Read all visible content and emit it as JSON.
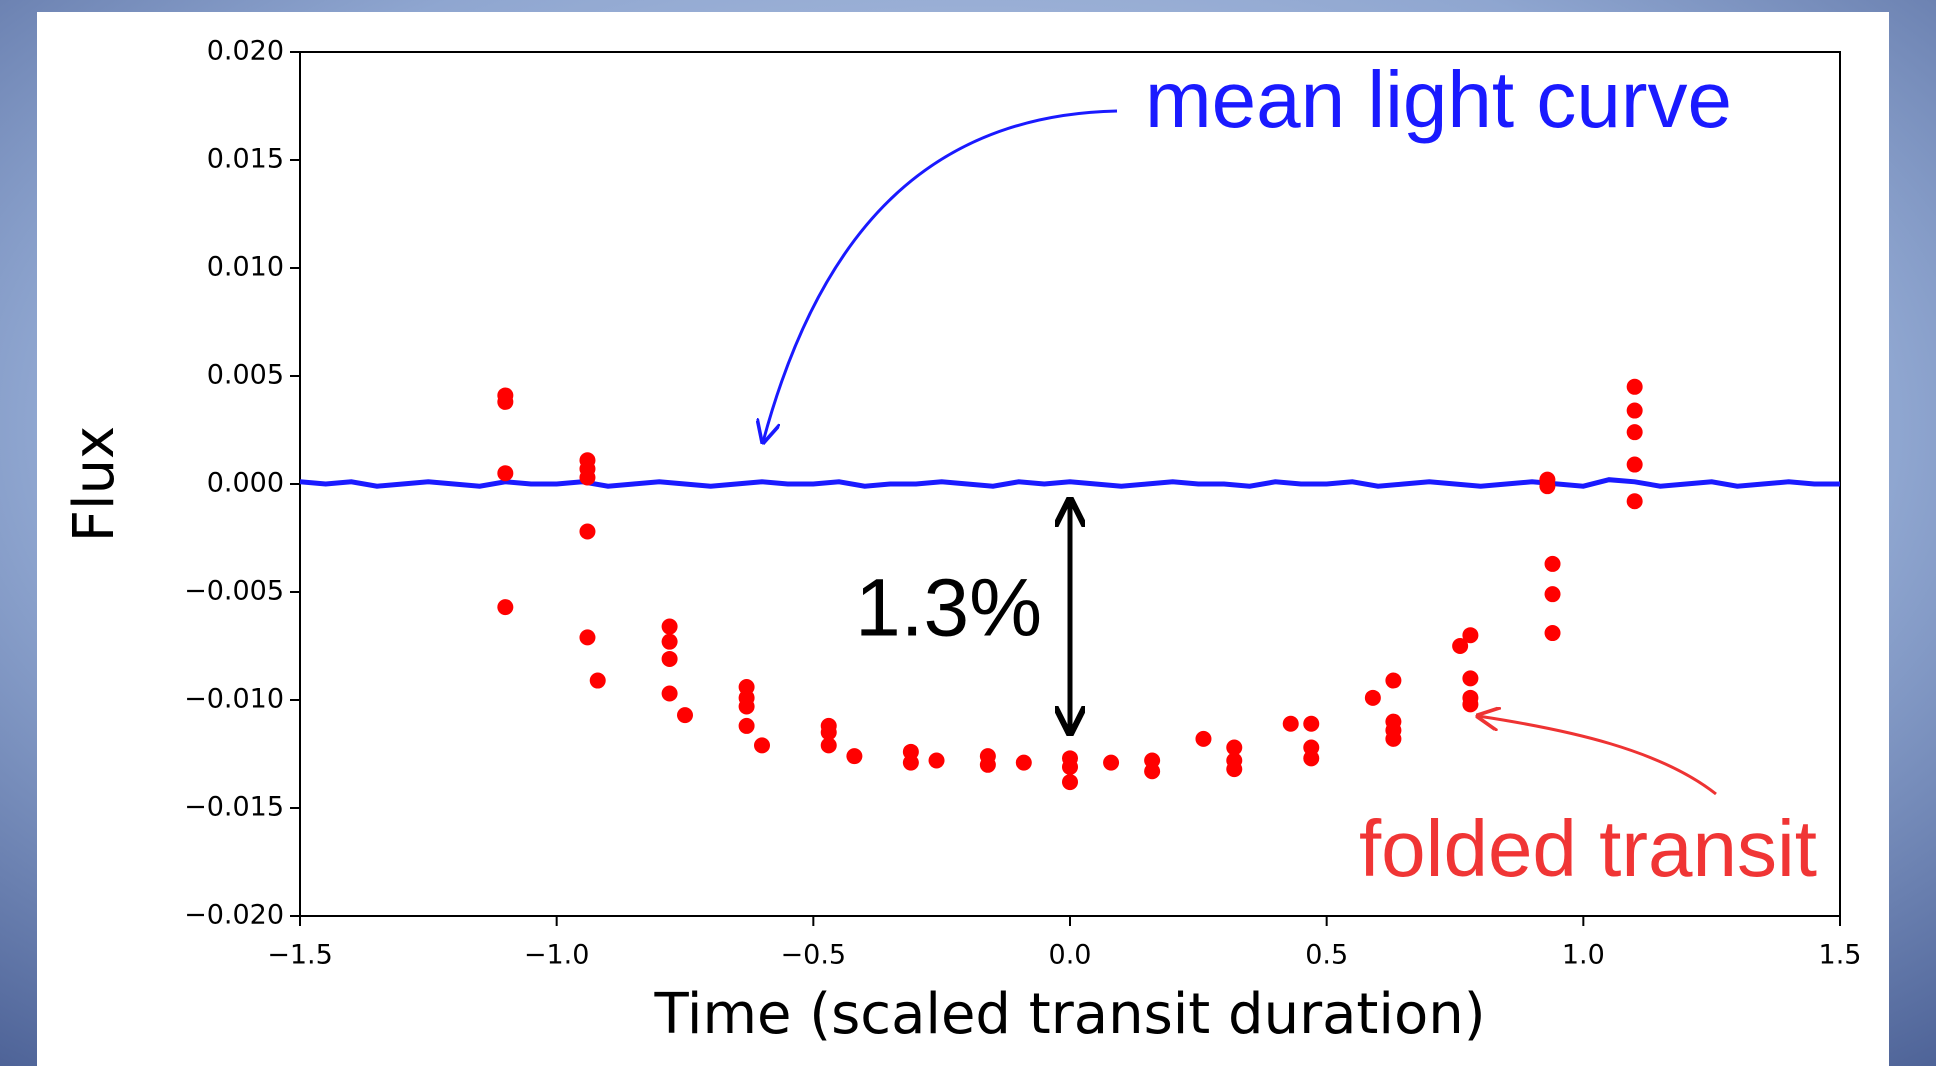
{
  "chart_data": {
    "type": "scatter",
    "xlabel": "Time (scaled transit duration)",
    "ylabel": "Flux",
    "xlim": [
      -1.5,
      1.5
    ],
    "ylim": [
      -0.02,
      0.02
    ],
    "xticks": [
      {
        "value": -1.5,
        "label": "−1.5"
      },
      {
        "value": -1.0,
        "label": "−1.0"
      },
      {
        "value": -0.5,
        "label": "−0.5"
      },
      {
        "value": 0.0,
        "label": "0.0"
      },
      {
        "value": 0.5,
        "label": "0.5"
      },
      {
        "value": 1.0,
        "label": "1.0"
      },
      {
        "value": 1.5,
        "label": "1.5"
      }
    ],
    "yticks": [
      {
        "value": 0.02,
        "label": "0.020"
      },
      {
        "value": 0.015,
        "label": "0.015"
      },
      {
        "value": 0.01,
        "label": "0.010"
      },
      {
        "value": 0.005,
        "label": "0.005"
      },
      {
        "value": 0.0,
        "label": "0.000"
      },
      {
        "value": -0.005,
        "label": "−0.005"
      },
      {
        "value": -0.01,
        "label": "−0.010"
      },
      {
        "value": -0.015,
        "label": "−0.015"
      },
      {
        "value": -0.02,
        "label": "−0.020"
      }
    ],
    "series": [
      {
        "name": "mean light curve",
        "color": "#1a1aff",
        "marker": "line",
        "x": [
          -1.5,
          -1.45,
          -1.4,
          -1.35,
          -1.3,
          -1.25,
          -1.2,
          -1.15,
          -1.1,
          -1.05,
          -1.0,
          -0.95,
          -0.9,
          -0.85,
          -0.8,
          -0.75,
          -0.7,
          -0.65,
          -0.6,
          -0.55,
          -0.5,
          -0.45,
          -0.4,
          -0.35,
          -0.3,
          -0.25,
          -0.2,
          -0.15,
          -0.1,
          -0.05,
          0.0,
          0.05,
          0.1,
          0.15,
          0.2,
          0.25,
          0.3,
          0.35,
          0.4,
          0.45,
          0.5,
          0.55,
          0.6,
          0.65,
          0.7,
          0.75,
          0.8,
          0.85,
          0.9,
          0.95,
          1.0,
          1.05,
          1.1,
          1.15,
          1.2,
          1.25,
          1.3,
          1.35,
          1.4,
          1.45,
          1.5
        ],
        "values": [
          0.0001,
          0.0,
          0.0001,
          -0.0001,
          0.0,
          0.0001,
          0.0,
          -0.0001,
          0.0001,
          0.0,
          0.0,
          0.0001,
          -0.0001,
          0.0,
          0.0001,
          0.0,
          -0.0001,
          0.0,
          0.0001,
          0.0,
          0.0,
          0.0001,
          -0.0001,
          0.0,
          0.0,
          0.0001,
          0.0,
          -0.0001,
          0.0001,
          0.0,
          0.0001,
          0.0,
          -0.0001,
          0.0,
          0.0001,
          0.0,
          0.0,
          -0.0001,
          0.0001,
          0.0,
          0.0,
          0.0001,
          -0.0001,
          0.0,
          0.0001,
          0.0,
          -0.0001,
          0.0,
          0.0001,
          0.0,
          -0.0001,
          0.0002,
          0.0001,
          -0.0001,
          0.0,
          0.0001,
          -0.0001,
          0.0,
          0.0001,
          0.0,
          0.0
        ]
      },
      {
        "name": "folded transit",
        "color": "#ff0000",
        "marker": "dot",
        "x": [
          -1.1,
          -1.1,
          -1.1,
          -1.1,
          -0.94,
          -0.94,
          -0.94,
          -0.94,
          -0.94,
          -0.92,
          -0.78,
          -0.78,
          -0.78,
          -0.78,
          -0.75,
          -0.63,
          -0.63,
          -0.63,
          -0.63,
          -0.6,
          -0.47,
          -0.47,
          -0.47,
          -0.42,
          -0.31,
          -0.31,
          -0.26,
          -0.16,
          -0.16,
          -0.09,
          0.0,
          0.0,
          0.0,
          0.08,
          0.16,
          0.16,
          0.26,
          0.32,
          0.32,
          0.32,
          0.43,
          0.47,
          0.47,
          0.47,
          0.59,
          0.63,
          0.63,
          0.63,
          0.63,
          0.76,
          0.78,
          0.78,
          0.78,
          0.78,
          0.93,
          0.93,
          0.94,
          0.94,
          0.94,
          1.1,
          1.1,
          1.1,
          1.1,
          1.1
        ],
        "values": [
          0.0041,
          0.0038,
          0.0005,
          -0.0057,
          0.0011,
          0.0007,
          0.0003,
          -0.0022,
          -0.0071,
          -0.0091,
          -0.0066,
          -0.0073,
          -0.0081,
          -0.0097,
          -0.0107,
          -0.0094,
          -0.0099,
          -0.0103,
          -0.0112,
          -0.0121,
          -0.0112,
          -0.0115,
          -0.0121,
          -0.0126,
          -0.0124,
          -0.0129,
          -0.0128,
          -0.0126,
          -0.013,
          -0.0129,
          -0.0127,
          -0.0131,
          -0.0138,
          -0.0129,
          -0.0128,
          -0.0133,
          -0.0118,
          -0.0122,
          -0.0128,
          -0.0132,
          -0.0111,
          -0.0111,
          -0.0122,
          -0.0127,
          -0.0099,
          -0.0091,
          -0.011,
          -0.0114,
          -0.0118,
          -0.0075,
          -0.007,
          -0.009,
          -0.0099,
          -0.0102,
          -0.0001,
          0.0002,
          -0.0037,
          -0.0051,
          -0.0069,
          0.0045,
          0.0034,
          0.0024,
          0.0009,
          -0.0008
        ]
      }
    ],
    "annotations": [
      "mean light curve",
      "1.3%",
      "folded transit"
    ]
  }
}
